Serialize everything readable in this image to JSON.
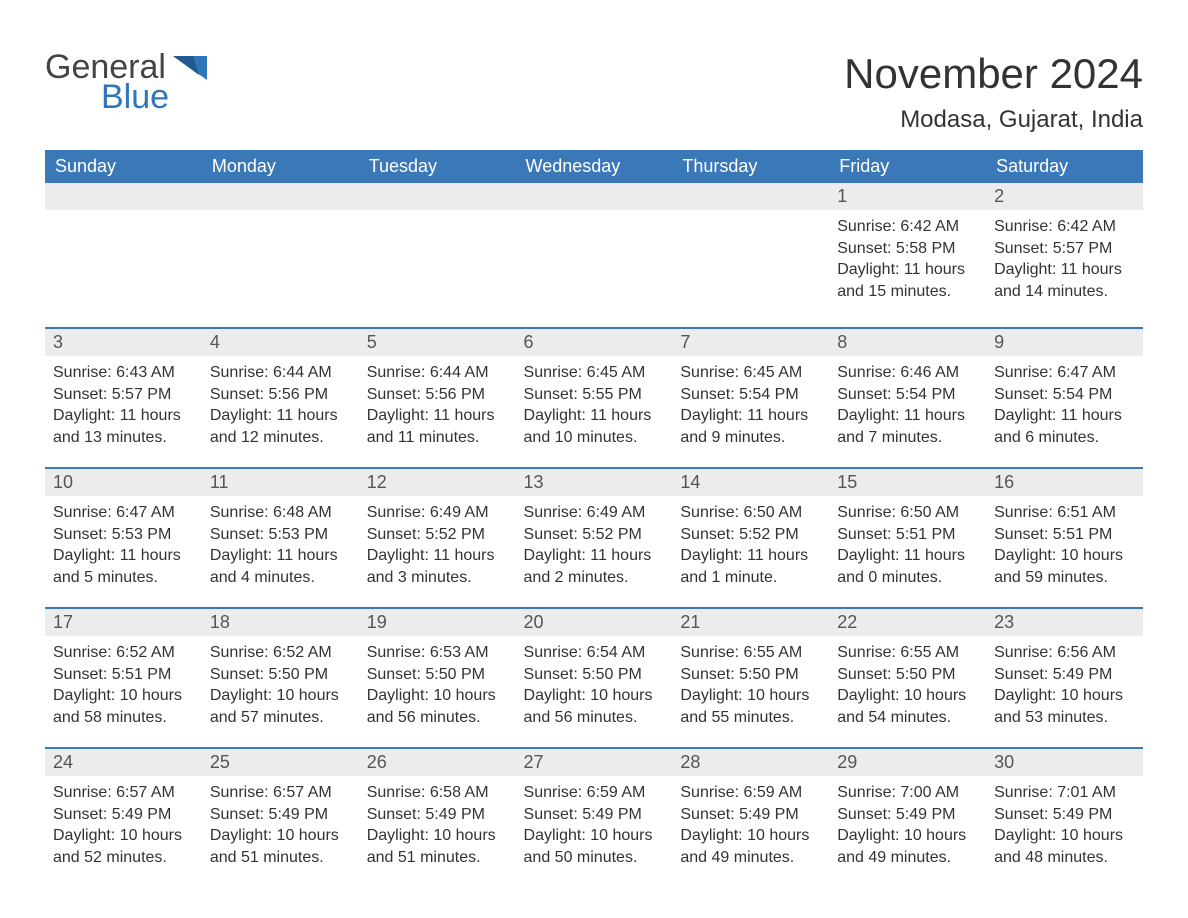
{
  "logo": {
    "word1": "General",
    "word2": "Blue"
  },
  "title": "November 2024",
  "location": "Modasa, Gujarat, India",
  "colors": {
    "header_bg": "#3a78b8",
    "header_text": "#ffffff",
    "daynum_bg": "#ececec",
    "border": "#3a78b8",
    "text": "#333333",
    "logo_blue": "#2f77b8"
  },
  "day_headers": [
    "Sunday",
    "Monday",
    "Tuesday",
    "Wednesday",
    "Thursday",
    "Friday",
    "Saturday"
  ],
  "weeks": [
    [
      null,
      null,
      null,
      null,
      null,
      {
        "n": "1",
        "sr": "6:42 AM",
        "ss": "5:58 PM",
        "dl": "11 hours and 15 minutes."
      },
      {
        "n": "2",
        "sr": "6:42 AM",
        "ss": "5:57 PM",
        "dl": "11 hours and 14 minutes."
      }
    ],
    [
      {
        "n": "3",
        "sr": "6:43 AM",
        "ss": "5:57 PM",
        "dl": "11 hours and 13 minutes."
      },
      {
        "n": "4",
        "sr": "6:44 AM",
        "ss": "5:56 PM",
        "dl": "11 hours and 12 minutes."
      },
      {
        "n": "5",
        "sr": "6:44 AM",
        "ss": "5:56 PM",
        "dl": "11 hours and 11 minutes."
      },
      {
        "n": "6",
        "sr": "6:45 AM",
        "ss": "5:55 PM",
        "dl": "11 hours and 10 minutes."
      },
      {
        "n": "7",
        "sr": "6:45 AM",
        "ss": "5:54 PM",
        "dl": "11 hours and 9 minutes."
      },
      {
        "n": "8",
        "sr": "6:46 AM",
        "ss": "5:54 PM",
        "dl": "11 hours and 7 minutes."
      },
      {
        "n": "9",
        "sr": "6:47 AM",
        "ss": "5:54 PM",
        "dl": "11 hours and 6 minutes."
      }
    ],
    [
      {
        "n": "10",
        "sr": "6:47 AM",
        "ss": "5:53 PM",
        "dl": "11 hours and 5 minutes."
      },
      {
        "n": "11",
        "sr": "6:48 AM",
        "ss": "5:53 PM",
        "dl": "11 hours and 4 minutes."
      },
      {
        "n": "12",
        "sr": "6:49 AM",
        "ss": "5:52 PM",
        "dl": "11 hours and 3 minutes."
      },
      {
        "n": "13",
        "sr": "6:49 AM",
        "ss": "5:52 PM",
        "dl": "11 hours and 2 minutes."
      },
      {
        "n": "14",
        "sr": "6:50 AM",
        "ss": "5:52 PM",
        "dl": "11 hours and 1 minute."
      },
      {
        "n": "15",
        "sr": "6:50 AM",
        "ss": "5:51 PM",
        "dl": "11 hours and 0 minutes."
      },
      {
        "n": "16",
        "sr": "6:51 AM",
        "ss": "5:51 PM",
        "dl": "10 hours and 59 minutes."
      }
    ],
    [
      {
        "n": "17",
        "sr": "6:52 AM",
        "ss": "5:51 PM",
        "dl": "10 hours and 58 minutes."
      },
      {
        "n": "18",
        "sr": "6:52 AM",
        "ss": "5:50 PM",
        "dl": "10 hours and 57 minutes."
      },
      {
        "n": "19",
        "sr": "6:53 AM",
        "ss": "5:50 PM",
        "dl": "10 hours and 56 minutes."
      },
      {
        "n": "20",
        "sr": "6:54 AM",
        "ss": "5:50 PM",
        "dl": "10 hours and 56 minutes."
      },
      {
        "n": "21",
        "sr": "6:55 AM",
        "ss": "5:50 PM",
        "dl": "10 hours and 55 minutes."
      },
      {
        "n": "22",
        "sr": "6:55 AM",
        "ss": "5:50 PM",
        "dl": "10 hours and 54 minutes."
      },
      {
        "n": "23",
        "sr": "6:56 AM",
        "ss": "5:49 PM",
        "dl": "10 hours and 53 minutes."
      }
    ],
    [
      {
        "n": "24",
        "sr": "6:57 AM",
        "ss": "5:49 PM",
        "dl": "10 hours and 52 minutes."
      },
      {
        "n": "25",
        "sr": "6:57 AM",
        "ss": "5:49 PM",
        "dl": "10 hours and 51 minutes."
      },
      {
        "n": "26",
        "sr": "6:58 AM",
        "ss": "5:49 PM",
        "dl": "10 hours and 51 minutes."
      },
      {
        "n": "27",
        "sr": "6:59 AM",
        "ss": "5:49 PM",
        "dl": "10 hours and 50 minutes."
      },
      {
        "n": "28",
        "sr": "6:59 AM",
        "ss": "5:49 PM",
        "dl": "10 hours and 49 minutes."
      },
      {
        "n": "29",
        "sr": "7:00 AM",
        "ss": "5:49 PM",
        "dl": "10 hours and 49 minutes."
      },
      {
        "n": "30",
        "sr": "7:01 AM",
        "ss": "5:49 PM",
        "dl": "10 hours and 48 minutes."
      }
    ]
  ],
  "labels": {
    "sunrise": "Sunrise: ",
    "sunset": "Sunset: ",
    "daylight": "Daylight: "
  }
}
